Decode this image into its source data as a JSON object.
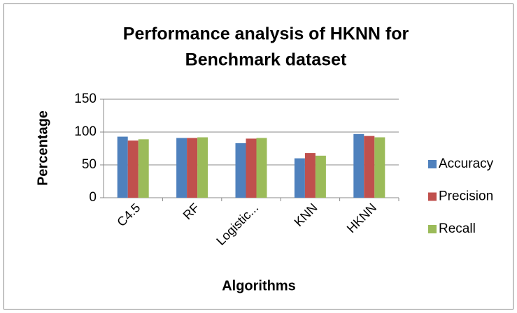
{
  "chart_data": {
    "type": "bar",
    "title": [
      "Performance analysis of HKNN for",
      "Benchmark dataset"
    ],
    "x_label": "Algorithms",
    "y_label": "Percentage",
    "categories": [
      "C4.5",
      "RF",
      "Logistic...",
      "KNN",
      "HKNN"
    ],
    "series": [
      {
        "name": "Accuracy",
        "color": "#4f81bd",
        "values": [
          93,
          91,
          83,
          60,
          97
        ]
      },
      {
        "name": "Precision",
        "color": "#c0504d",
        "values": [
          87,
          91,
          90,
          68,
          94
        ]
      },
      {
        "name": "Recall",
        "color": "#9bbb59",
        "values": [
          89,
          92,
          91,
          64,
          92
        ]
      }
    ],
    "ylim": [
      0,
      150
    ],
    "yticks": [
      0,
      50,
      100,
      150
    ],
    "grid": true,
    "legend": "right"
  }
}
